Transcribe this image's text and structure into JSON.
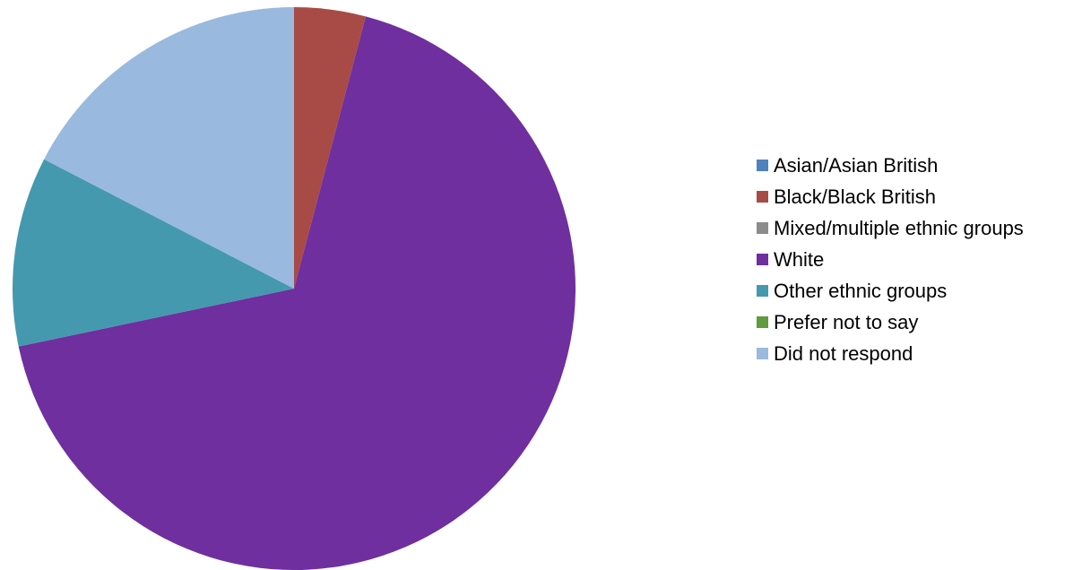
{
  "chart_data": {
    "type": "pie",
    "title": "",
    "start_angle_deg": 0,
    "direction": "clockwise",
    "slices": [
      {
        "label": "Asian/Asian British",
        "value": 0,
        "color": "#4F81BD"
      },
      {
        "label": "Black/Black British",
        "value": 4.1,
        "color": "#A84B47"
      },
      {
        "label": "Mixed/multiple ethnic groups",
        "value": 0,
        "color": "#8C8C8C"
      },
      {
        "label": "White",
        "value": 67.6,
        "color": "#6F2F9F"
      },
      {
        "label": "Other ethnic groups",
        "value": 10.9,
        "color": "#4599AE"
      },
      {
        "label": "Prefer not to say",
        "value": 0,
        "color": "#5E9C3E"
      },
      {
        "label": "Did not respond",
        "value": 17.4,
        "color": "#9AB9DE"
      }
    ],
    "legend_position": "right"
  }
}
